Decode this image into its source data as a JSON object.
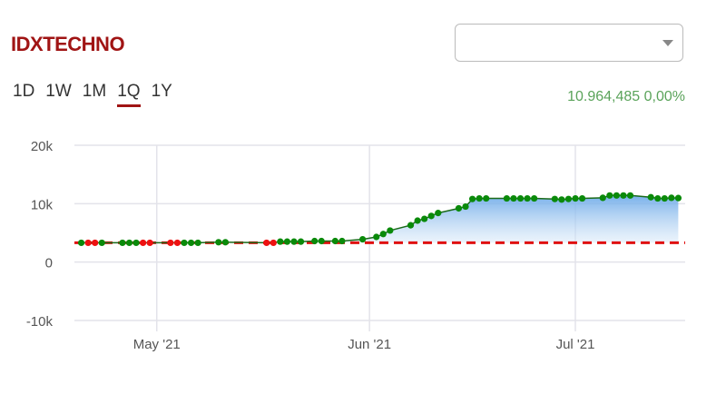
{
  "header": {
    "title": "IDXTECHNO",
    "select_value": ""
  },
  "ranges": [
    {
      "label": "1D"
    },
    {
      "label": "1W"
    },
    {
      "label": "1M"
    },
    {
      "label": "1Q",
      "active": true
    },
    {
      "label": "1Y"
    }
  ],
  "quote": {
    "value": "10.964,485",
    "change": "0,00%",
    "color": "#5aa35a"
  },
  "chart_data": {
    "type": "area",
    "title": "",
    "x_range": [
      "2021-04-19",
      "2021-07-17"
    ],
    "ylim": [
      -10000,
      20000
    ],
    "y_ticks": [
      {
        "v": 20000,
        "label": "20k"
      },
      {
        "v": 10000,
        "label": "10k"
      },
      {
        "v": 0,
        "label": "0"
      },
      {
        "v": -10000,
        "label": "-10k"
      }
    ],
    "x_ticks": [
      {
        "date": "2021-05-01",
        "label": "May '21"
      },
      {
        "date": "2021-06-01",
        "label": "Jun '21"
      },
      {
        "date": "2021-07-01",
        "label": "Jul '21"
      }
    ],
    "reference_line": {
      "value": 3300,
      "color": "#e01010"
    },
    "up_color": "#0a8a0a",
    "down_color": "#ee1111",
    "line_color": "#1a6a1a",
    "points": [
      {
        "d": "2021-04-20",
        "v": 3300,
        "dir": "up"
      },
      {
        "d": "2021-04-21",
        "v": 3300,
        "dir": "down"
      },
      {
        "d": "2021-04-22",
        "v": 3300,
        "dir": "down"
      },
      {
        "d": "2021-04-23",
        "v": 3300,
        "dir": "up"
      },
      {
        "d": "2021-04-26",
        "v": 3300,
        "dir": "up"
      },
      {
        "d": "2021-04-27",
        "v": 3300,
        "dir": "up"
      },
      {
        "d": "2021-04-28",
        "v": 3300,
        "dir": "up"
      },
      {
        "d": "2021-04-29",
        "v": 3300,
        "dir": "down"
      },
      {
        "d": "2021-04-30",
        "v": 3300,
        "dir": "down"
      },
      {
        "d": "2021-05-03",
        "v": 3300,
        "dir": "down"
      },
      {
        "d": "2021-05-04",
        "v": 3300,
        "dir": "down"
      },
      {
        "d": "2021-05-05",
        "v": 3300,
        "dir": "up"
      },
      {
        "d": "2021-05-06",
        "v": 3300,
        "dir": "up"
      },
      {
        "d": "2021-05-07",
        "v": 3300,
        "dir": "up"
      },
      {
        "d": "2021-05-10",
        "v": 3400,
        "dir": "up"
      },
      {
        "d": "2021-05-11",
        "v": 3400,
        "dir": "up"
      },
      {
        "d": "2021-05-17",
        "v": 3300,
        "dir": "down"
      },
      {
        "d": "2021-05-18",
        "v": 3300,
        "dir": "down"
      },
      {
        "d": "2021-05-19",
        "v": 3500,
        "dir": "up"
      },
      {
        "d": "2021-05-20",
        "v": 3500,
        "dir": "up"
      },
      {
        "d": "2021-05-21",
        "v": 3500,
        "dir": "up"
      },
      {
        "d": "2021-05-22",
        "v": 3500,
        "dir": "up"
      },
      {
        "d": "2021-05-24",
        "v": 3600,
        "dir": "up"
      },
      {
        "d": "2021-05-25",
        "v": 3600,
        "dir": "up"
      },
      {
        "d": "2021-05-27",
        "v": 3600,
        "dir": "up"
      },
      {
        "d": "2021-05-28",
        "v": 3600,
        "dir": "up"
      },
      {
        "d": "2021-05-31",
        "v": 3900,
        "dir": "up"
      },
      {
        "d": "2021-06-02",
        "v": 4300,
        "dir": "up"
      },
      {
        "d": "2021-06-03",
        "v": 4800,
        "dir": "up"
      },
      {
        "d": "2021-06-04",
        "v": 5400,
        "dir": "up"
      },
      {
        "d": "2021-06-07",
        "v": 6300,
        "dir": "up"
      },
      {
        "d": "2021-06-08",
        "v": 7100,
        "dir": "up"
      },
      {
        "d": "2021-06-09",
        "v": 7400,
        "dir": "up"
      },
      {
        "d": "2021-06-10",
        "v": 7900,
        "dir": "up"
      },
      {
        "d": "2021-06-11",
        "v": 8400,
        "dir": "up"
      },
      {
        "d": "2021-06-14",
        "v": 9200,
        "dir": "up"
      },
      {
        "d": "2021-06-15",
        "v": 9500,
        "dir": "up"
      },
      {
        "d": "2021-06-16",
        "v": 10800,
        "dir": "up"
      },
      {
        "d": "2021-06-17",
        "v": 10900,
        "dir": "up"
      },
      {
        "d": "2021-06-18",
        "v": 10900,
        "dir": "up"
      },
      {
        "d": "2021-06-21",
        "v": 10900,
        "dir": "up"
      },
      {
        "d": "2021-06-22",
        "v": 10900,
        "dir": "up"
      },
      {
        "d": "2021-06-23",
        "v": 10900,
        "dir": "up"
      },
      {
        "d": "2021-06-24",
        "v": 10900,
        "dir": "up"
      },
      {
        "d": "2021-06-25",
        "v": 10900,
        "dir": "up"
      },
      {
        "d": "2021-06-28",
        "v": 10800,
        "dir": "up"
      },
      {
        "d": "2021-06-29",
        "v": 10700,
        "dir": "up"
      },
      {
        "d": "2021-06-30",
        "v": 10800,
        "dir": "up"
      },
      {
        "d": "2021-07-01",
        "v": 10900,
        "dir": "up"
      },
      {
        "d": "2021-07-02",
        "v": 10900,
        "dir": "up"
      },
      {
        "d": "2021-07-05",
        "v": 11000,
        "dir": "up"
      },
      {
        "d": "2021-07-06",
        "v": 11400,
        "dir": "up"
      },
      {
        "d": "2021-07-07",
        "v": 11400,
        "dir": "up"
      },
      {
        "d": "2021-07-08",
        "v": 11400,
        "dir": "up"
      },
      {
        "d": "2021-07-09",
        "v": 11400,
        "dir": "up"
      },
      {
        "d": "2021-07-12",
        "v": 11100,
        "dir": "up"
      },
      {
        "d": "2021-07-13",
        "v": 10900,
        "dir": "up"
      },
      {
        "d": "2021-07-14",
        "v": 10900,
        "dir": "up"
      },
      {
        "d": "2021-07-15",
        "v": 11000,
        "dir": "up"
      },
      {
        "d": "2021-07-16",
        "v": 10960,
        "dir": "up"
      }
    ]
  }
}
